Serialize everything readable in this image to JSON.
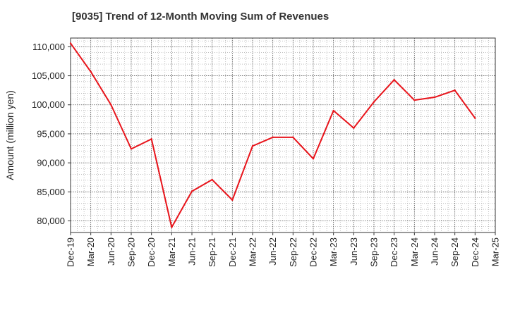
{
  "chart_data": {
    "type": "line",
    "title": "[9035]  Trend of 12-Month Moving Sum of Revenues",
    "ylabel": "Amount (million yen)",
    "xlabel": "",
    "x_tick_labels": [
      "Dec-19",
      "Mar-20",
      "Jun-20",
      "Sep-20",
      "Dec-20",
      "Mar-21",
      "Jun-21",
      "Sep-21",
      "Dec-21",
      "Mar-22",
      "Jun-22",
      "Sep-22",
      "Dec-22",
      "Mar-23",
      "Jun-23",
      "Sep-23",
      "Dec-23",
      "Mar-24",
      "Jun-24",
      "Sep-24",
      "Dec-24",
      "Mar-25"
    ],
    "y_ticks": [
      80000,
      85000,
      90000,
      95000,
      100000,
      105000,
      110000
    ],
    "y_tick_labels": [
      "80,000",
      "85,000",
      "90,000",
      "95,000",
      "100,000",
      "105,000",
      "110,000"
    ],
    "ylim": [
      78000,
      111500
    ],
    "grid": true,
    "series": [
      {
        "color": "#e8141b",
        "x": [
          "Dec-19",
          "Mar-20",
          "Jun-20",
          "Sep-20",
          "Dec-20",
          "Mar-21",
          "Jun-21",
          "Sep-21",
          "Dec-21",
          "Mar-22",
          "Jun-22",
          "Sep-22",
          "Dec-22",
          "Mar-23",
          "Jun-23",
          "Sep-23",
          "Dec-23",
          "Mar-24",
          "Jun-24",
          "Sep-24",
          "Dec-24"
        ],
        "values": [
          110600,
          105700,
          100000,
          92400,
          94100,
          78900,
          85100,
          87100,
          83600,
          92900,
          94400,
          94400,
          90700,
          99000,
          96000,
          100500,
          104300,
          100800,
          101300,
          102500,
          97700
        ]
      }
    ]
  }
}
